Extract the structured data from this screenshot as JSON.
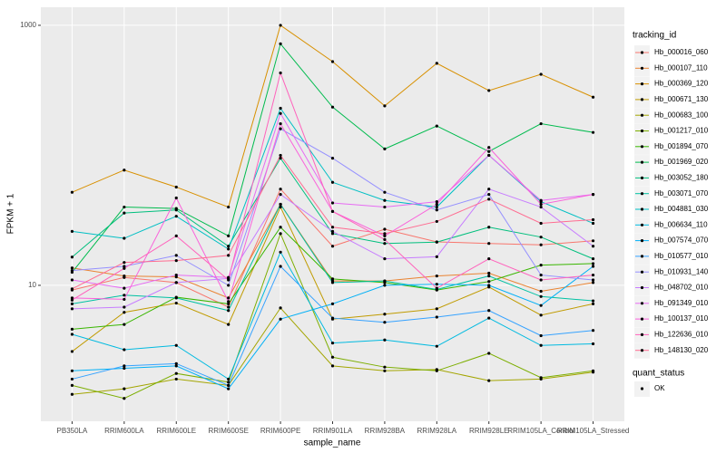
{
  "chart_data": {
    "type": "line",
    "x_label": "sample_name",
    "y_label": "FPKM + 1",
    "log_y": true,
    "grid": true,
    "point_color": "#000000",
    "categories": [
      "PB350LA",
      "RRIM600LA",
      "RRIM600LE",
      "RRIM600SE",
      "RRIM600PE",
      "RRIM901LA",
      "RRIM928BA",
      "RRIM928LA",
      "RRIM928LE",
      "RRIM105LA_Control",
      "RRIM105LA_Stressed"
    ],
    "ylim": [
      0.9,
      1377
    ],
    "yticks": [
      10,
      1000
    ],
    "legend_title": "tracking_id",
    "legend_position": "right",
    "shape_legend": {
      "title": "quant_status",
      "labels": [
        "OK"
      ]
    },
    "series": [
      {
        "name": "Hb_000016_060",
        "color": "#F8766D",
        "values": [
          9.2,
          11.5,
          10.5,
          6.8,
          55,
          20,
          27,
          21.6,
          21,
          20.5,
          22
        ]
      },
      {
        "name": "Hb_000107_110",
        "color": "#EA8331",
        "values": [
          13.6,
          11.8,
          11.6,
          8,
          42,
          10.8,
          10.8,
          11.8,
          12.4,
          9.0,
          10.5
        ]
      },
      {
        "name": "Hb_000369_120",
        "color": "#D89000",
        "values": [
          52,
          77,
          57,
          40,
          1000,
          526,
          240,
          510,
          315,
          420,
          280
        ]
      },
      {
        "name": "Hb_000671_130",
        "color": "#C09B00",
        "values": [
          3.1,
          6.2,
          7.3,
          5,
          40,
          5.5,
          6,
          6.6,
          9.7,
          5.9,
          7.2
        ]
      },
      {
        "name": "Hb_000683_100",
        "color": "#A3A500",
        "values": [
          1.45,
          1.6,
          1.9,
          1.7,
          6.7,
          2.4,
          2.2,
          2.25,
          1.85,
          1.9,
          2.15
        ]
      },
      {
        "name": "Hb_001217_010",
        "color": "#7CAE00",
        "values": [
          1.7,
          1.35,
          2.1,
          1.8,
          25,
          2.8,
          2.35,
          2.2,
          3.0,
          1.95,
          2.2
        ]
      },
      {
        "name": "Hb_001894_070",
        "color": "#39B600",
        "values": [
          4.6,
          5.0,
          8.1,
          7.2,
          28,
          11.2,
          10.5,
          9.2,
          10.7,
          14.3,
          14.7
        ]
      },
      {
        "name": "Hb_001969_020",
        "color": "#00BB4E",
        "values": [
          12.6,
          40,
          39,
          24,
          720,
          235,
          112,
          168,
          107,
          175,
          150
        ]
      },
      {
        "name": "Hb_003052_180",
        "color": "#00BF7D",
        "values": [
          16.5,
          36,
          38,
          20,
          95,
          25,
          21,
          21.5,
          28,
          23.5,
          16
        ]
      },
      {
        "name": "Hb_003071_070",
        "color": "#00C1A3",
        "values": [
          7.2,
          8.4,
          8.0,
          6.4,
          42,
          10.5,
          10.8,
          9.3,
          11.8,
          8.2,
          7.6
        ]
      },
      {
        "name": "Hb_004881_030",
        "color": "#00BFC4",
        "values": [
          26,
          23,
          34,
          19,
          230,
          62,
          45,
          40,
          100,
          44,
          30
        ]
      },
      {
        "name": "Hb_006634_110",
        "color": "#00BAE0",
        "values": [
          4.2,
          3.2,
          3.45,
          1.9,
          18,
          3.6,
          3.8,
          3.4,
          5.6,
          3.45,
          3.55
        ]
      },
      {
        "name": "Hb_007574_070",
        "color": "#00B0F6",
        "values": [
          2.2,
          2.3,
          2.4,
          1.6,
          5.5,
          7.2,
          10.0,
          10.2,
          10.0,
          7.0,
          14
        ]
      },
      {
        "name": "Hb_010577_010",
        "color": "#35A2FF",
        "values": [
          1.9,
          2.4,
          2.5,
          1.7,
          14,
          5.6,
          5.2,
          5.7,
          6.4,
          4.1,
          4.5
        ]
      },
      {
        "name": "Hb_010931_140",
        "color": "#9590FF",
        "values": [
          13,
          14,
          17,
          10,
          160,
          95,
          52,
          38,
          50,
          12,
          11
        ]
      },
      {
        "name": "Hb_048702_010",
        "color": "#C77CFF",
        "values": [
          6.6,
          6.8,
          10.5,
          11.3,
          50,
          26,
          16,
          16.6,
          55,
          40,
          20
        ]
      },
      {
        "name": "Hb_091349_010",
        "color": "#E76BF3",
        "values": [
          11,
          9.5,
          12,
          11.5,
          210,
          43,
          40,
          44,
          100,
          45,
          50
        ]
      },
      {
        "name": "Hb_100137_010",
        "color": "#FA62DB",
        "values": [
          8,
          7.8,
          47,
          7.5,
          175,
          37,
          24,
          42,
          115,
          42,
          50
        ]
      },
      {
        "name": "Hb_122636_010",
        "color": "#FF62BC",
        "values": [
          7.7,
          13.5,
          24,
          11,
          430,
          37,
          22.5,
          9.5,
          16,
          11,
          12
        ]
      },
      {
        "name": "Hb_148130_020",
        "color": "#FF6C91",
        "values": [
          9.4,
          15,
          15.5,
          17,
          100,
          28,
          25,
          31,
          46,
          30,
          32
        ]
      }
    ]
  }
}
